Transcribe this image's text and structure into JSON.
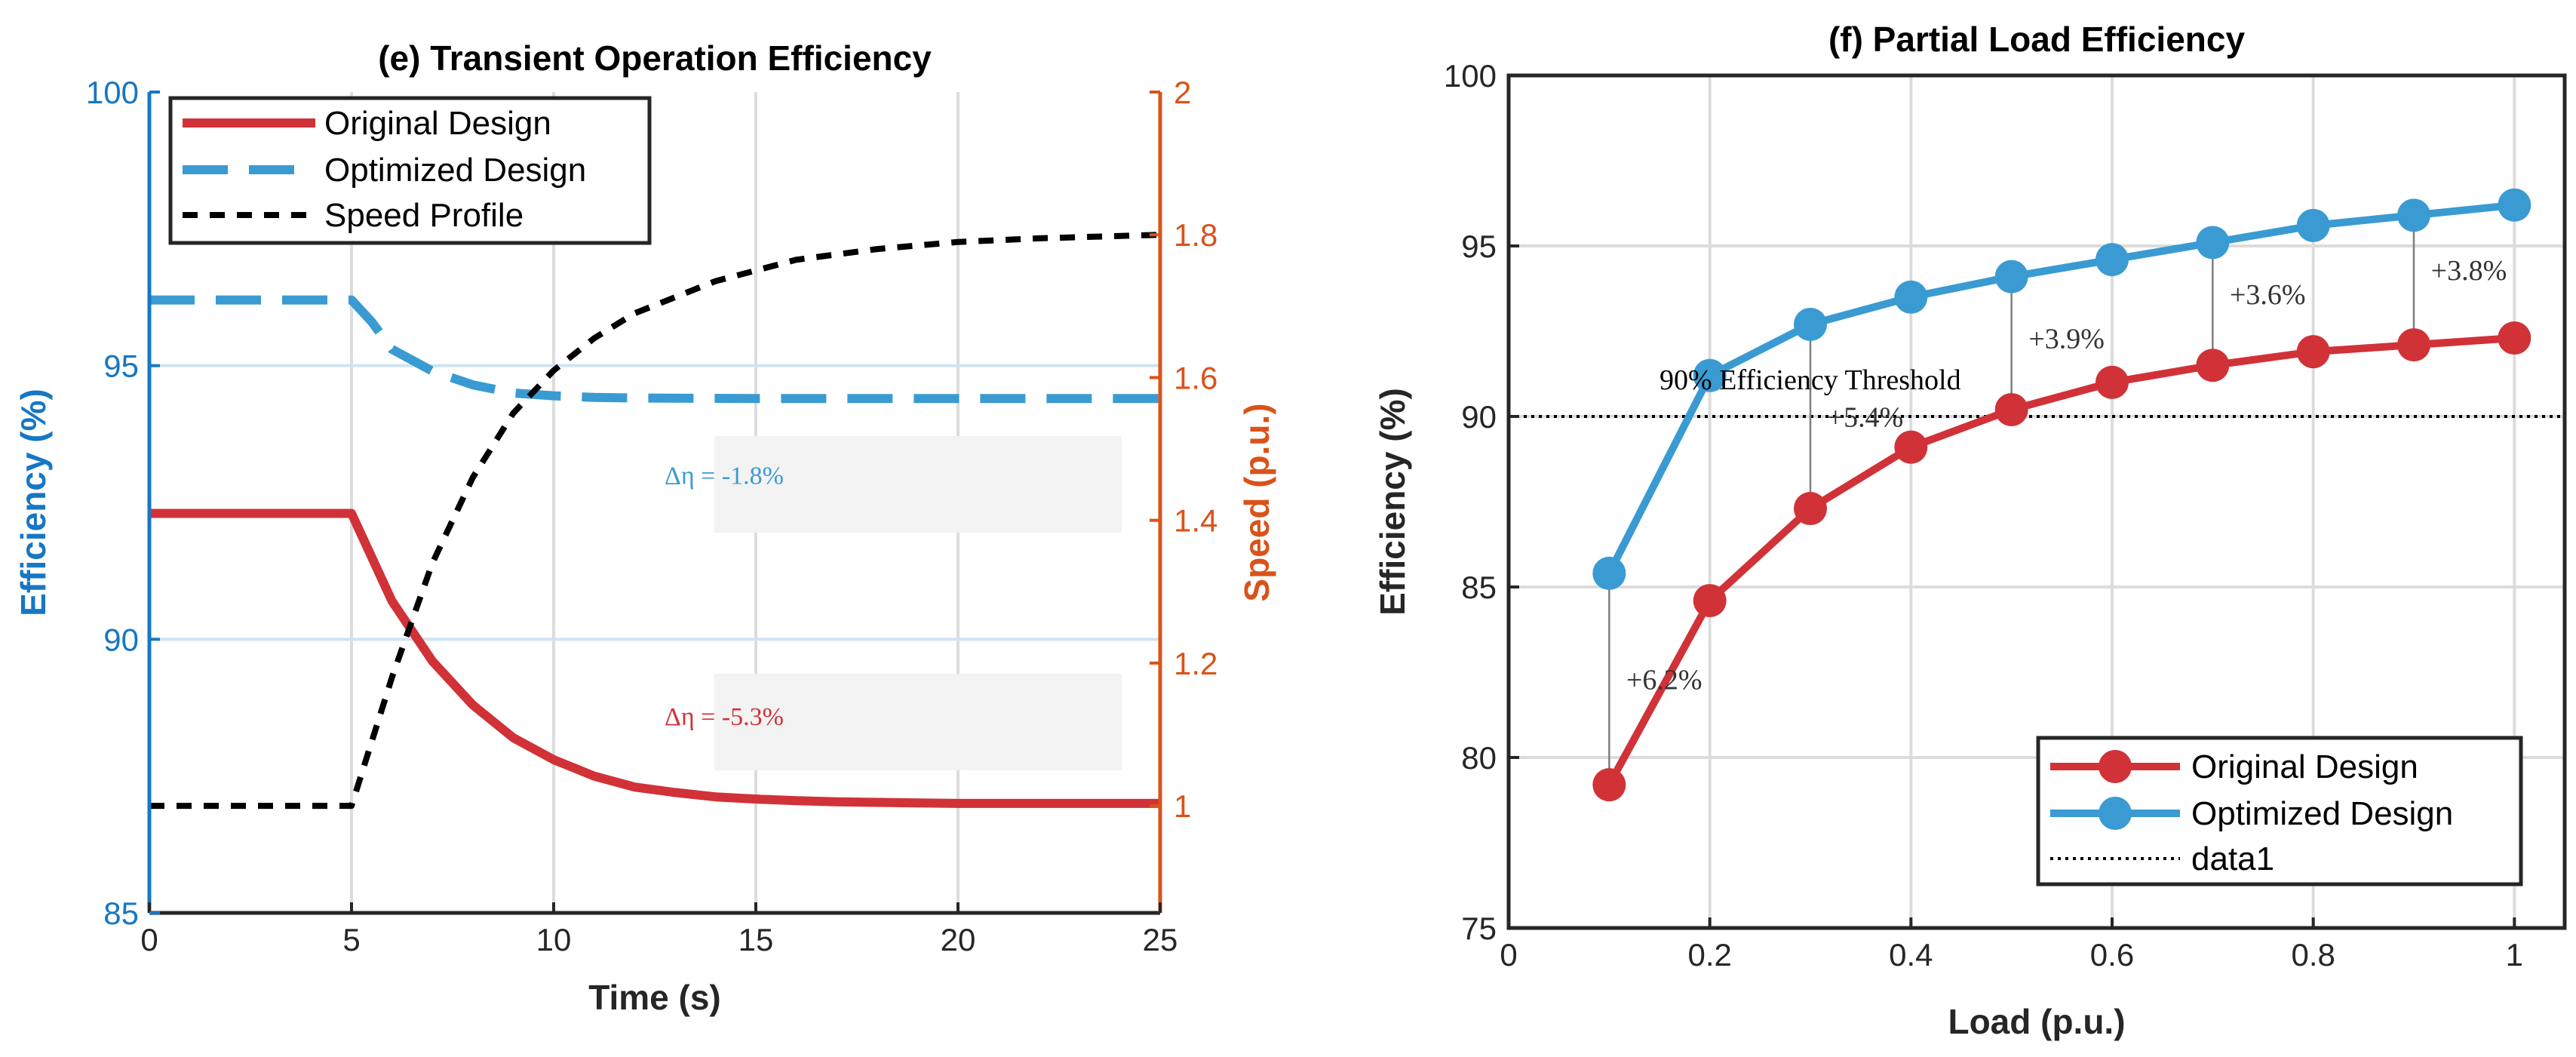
{
  "chart_data": [
    {
      "type": "line",
      "title": "(e) Transient Operation Efficiency",
      "xlabel": "Time (s)",
      "ylabel": "Efficiency (%)",
      "ylabel_right": "Speed (p.u.)",
      "xlim": [
        0,
        25
      ],
      "ylim": [
        85,
        100
      ],
      "ylim_right": [
        0.85,
        2
      ],
      "xticks": [
        "0",
        "5",
        "10",
        "15",
        "20",
        "25"
      ],
      "xtick_values": [
        0,
        5,
        10,
        15,
        20,
        25
      ],
      "yticks": [
        "85",
        "90",
        "95",
        "100"
      ],
      "ytick_values": [
        85,
        90,
        95,
        100
      ],
      "yticks_right": [
        "1",
        "1.2",
        "1.4",
        "1.6",
        "1.8",
        "2"
      ],
      "ytick_right_values": [
        1,
        1.2,
        1.4,
        1.6,
        1.8,
        2
      ],
      "grid": true,
      "legend_position": "top-left",
      "series": [
        {
          "name": "Original Design",
          "axis": "left",
          "style": "solid",
          "color": "#d03238",
          "x": [
            0,
            5,
            6,
            7,
            8,
            9,
            10,
            11,
            12,
            13,
            14,
            15,
            16,
            17,
            18,
            19,
            20,
            22,
            25
          ],
          "y": [
            92.3,
            92.3,
            90.7,
            89.6,
            88.8,
            88.2,
            87.8,
            87.5,
            87.3,
            87.2,
            87.12,
            87.08,
            87.05,
            87.03,
            87.02,
            87.01,
            87.0,
            87.0,
            87.0
          ]
        },
        {
          "name": "Optimized Design",
          "axis": "left",
          "style": "dashed",
          "color": "#3a9bd2",
          "x": [
            0,
            5,
            5.5,
            6,
            7,
            8,
            9,
            10,
            11,
            12,
            15,
            20,
            25
          ],
          "y": [
            96.2,
            96.2,
            95.8,
            95.3,
            94.9,
            94.65,
            94.5,
            94.45,
            94.42,
            94.41,
            94.4,
            94.4,
            94.4
          ]
        },
        {
          "name": "Speed Profile",
          "axis": "right",
          "style": "dotted",
          "color": "#000000",
          "x": [
            0,
            5,
            6,
            7,
            8,
            9,
            10,
            11,
            12,
            14,
            16,
            18,
            20,
            22,
            25
          ],
          "y": [
            1.0,
            1.0,
            1.18,
            1.34,
            1.46,
            1.55,
            1.61,
            1.655,
            1.69,
            1.735,
            1.765,
            1.78,
            1.79,
            1.795,
            1.8
          ]
        }
      ],
      "annotations": [
        {
          "text": "Δη = -1.8%",
          "color": "#3a9bd2",
          "x": 17.5,
          "y": 93.0
        },
        {
          "text": "Δη = -5.3%",
          "color": "#d03238",
          "x": 17.5,
          "y": 88.6
        }
      ]
    },
    {
      "type": "line",
      "title": "(f) Partial Load Efficiency",
      "xlabel": "Load (p.u.)",
      "ylabel": "Efficiency (%)",
      "xlim": [
        0,
        1.05
      ],
      "ylim": [
        75,
        100
      ],
      "xticks": [
        "0",
        "0.2",
        "0.4",
        "0.6",
        "0.8",
        "1"
      ],
      "xtick_values": [
        0,
        0.2,
        0.4,
        0.6,
        0.8,
        1
      ],
      "yticks": [
        "75",
        "80",
        "85",
        "90",
        "95",
        "100"
      ],
      "ytick_values": [
        75,
        80,
        85,
        90,
        95,
        100
      ],
      "grid": true,
      "legend_position": "bottom-right",
      "x": [
        0.1,
        0.2,
        0.3,
        0.4,
        0.5,
        0.6,
        0.7,
        0.8,
        0.9,
        1.0
      ],
      "series": [
        {
          "name": "Original Design",
          "color": "#d03238",
          "marker": "circle",
          "values": [
            79.2,
            84.6,
            87.3,
            89.1,
            90.2,
            91.0,
            91.5,
            91.9,
            92.1,
            92.3
          ]
        },
        {
          "name": "Optimized Design",
          "color": "#3a9bd2",
          "marker": "circle",
          "values": [
            85.4,
            91.2,
            92.7,
            93.5,
            94.1,
            94.6,
            95.1,
            95.6,
            95.9,
            96.2
          ]
        },
        {
          "name": "data1",
          "color": "#000000",
          "style": "dotted",
          "constant": 90
        }
      ],
      "threshold_label": "90% Efficiency Threshold",
      "threshold_label_x": 0.15,
      "threshold_label_y": 90.8,
      "difference_lines_at": [
        0.1,
        0.3,
        0.5,
        0.7,
        0.9
      ],
      "annotations": [
        {
          "text": "+6.2%",
          "x": 0.117,
          "y": 82.0
        },
        {
          "text": "+5.4%",
          "x": 0.317,
          "y": 89.7
        },
        {
          "text": "+3.9%",
          "x": 0.517,
          "y": 92.0
        },
        {
          "text": "+3.6%",
          "x": 0.717,
          "y": 93.3
        },
        {
          "text": "+3.8%",
          "x": 0.917,
          "y": 94.0
        }
      ]
    }
  ]
}
